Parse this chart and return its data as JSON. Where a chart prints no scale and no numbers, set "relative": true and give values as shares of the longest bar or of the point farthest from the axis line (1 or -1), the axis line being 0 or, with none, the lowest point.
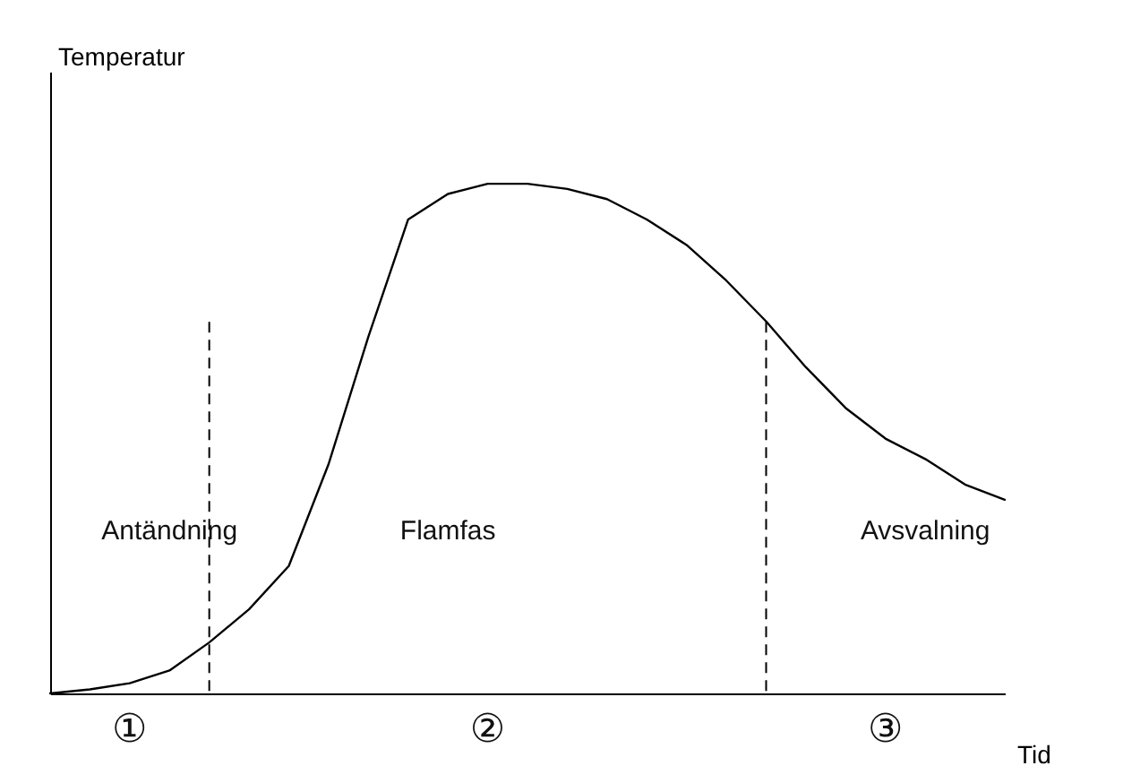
{
  "chart_data": {
    "type": "line",
    "relative": true,
    "xlabel": "Tid",
    "ylabel": "Temperatur",
    "categories": [
      null,
      null,
      null,
      null,
      null,
      null,
      null,
      null,
      null,
      null,
      null,
      null,
      null,
      null,
      null,
      null,
      null,
      null,
      null,
      null,
      null,
      null,
      null,
      null,
      null
    ],
    "values": [
      0,
      0.008,
      0.02,
      0.045,
      0.1,
      0.165,
      0.25,
      0.45,
      0.7,
      0.93,
      0.98,
      1.0,
      1.0,
      0.99,
      0.97,
      0.93,
      0.88,
      0.81,
      0.73,
      0.64,
      0.56,
      0.5,
      0.46,
      0.41,
      0.38
    ],
    "color": "#000000",
    "marker": "none",
    "line_style": "solid",
    "annotations": [
      "Antändning",
      "Flamfas",
      "Avsvalning",
      "①",
      "②",
      "③"
    ]
  }
}
